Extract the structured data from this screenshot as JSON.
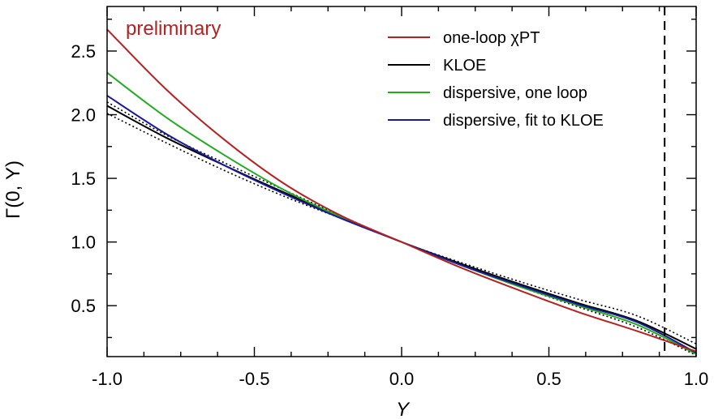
{
  "chart_data": {
    "type": "line",
    "title": "",
    "xlabel": "Y",
    "ylabel": "Γ(0, Y)",
    "xlim": [
      -1.0,
      1.0
    ],
    "ylim": [
      0.1,
      2.85
    ],
    "x_ticks": [
      "-1.0",
      "-0.5",
      "0.0",
      "0.5",
      "1.0"
    ],
    "x_tick_values": [
      -1.0,
      -0.5,
      0.0,
      0.5,
      1.0
    ],
    "y_ticks": [
      "0.5",
      "1.0",
      "1.5",
      "2.0",
      "2.5"
    ],
    "y_tick_values": [
      0.5,
      1.0,
      1.5,
      2.0,
      2.5
    ],
    "annotation": {
      "text": "preliminary",
      "color": "#b22222"
    },
    "legend_position": "top-right",
    "vertical_line": {
      "x": 0.893,
      "style": "dashed"
    },
    "x": [
      -1.0,
      -0.8,
      -0.6,
      -0.4,
      -0.2,
      0.0,
      0.2,
      0.4,
      0.6,
      0.8,
      1.0
    ],
    "series": [
      {
        "name": "one-loop χPT",
        "color": "#b22222",
        "style": "solid",
        "values": [
          2.67,
          2.2,
          1.8,
          1.46,
          1.2,
          1.0,
          0.8,
          0.62,
          0.45,
          0.3,
          0.14
        ]
      },
      {
        "name": "KLOE",
        "color": "#000000",
        "style": "solid",
        "values": [
          2.07,
          1.82,
          1.6,
          1.39,
          1.19,
          1.0,
          0.83,
          0.67,
          0.52,
          0.38,
          0.16
        ]
      },
      {
        "name": "dispersive, one loop",
        "color": "#22aa22",
        "style": "solid",
        "values": [
          2.33,
          1.98,
          1.68,
          1.41,
          1.19,
          1.0,
          0.82,
          0.65,
          0.5,
          0.35,
          0.12
        ]
      },
      {
        "name": "dispersive, fit to KLOE",
        "color": "#1a1a99",
        "style": "solid",
        "values": [
          2.15,
          1.85,
          1.6,
          1.38,
          1.18,
          1.0,
          0.82,
          0.66,
          0.51,
          0.37,
          0.13
        ]
      },
      {
        "name": "",
        "color": "#000000",
        "style": "dotted",
        "values": [
          2.1,
          1.84,
          1.62,
          1.41,
          1.2,
          1.0,
          0.84,
          0.69,
          0.55,
          0.42,
          0.2
        ]
      },
      {
        "name": "",
        "color": "#000000",
        "style": "dotted",
        "values": [
          2.01,
          1.78,
          1.56,
          1.36,
          1.18,
          1.0,
          0.82,
          0.65,
          0.49,
          0.33,
          0.11
        ]
      }
    ]
  }
}
